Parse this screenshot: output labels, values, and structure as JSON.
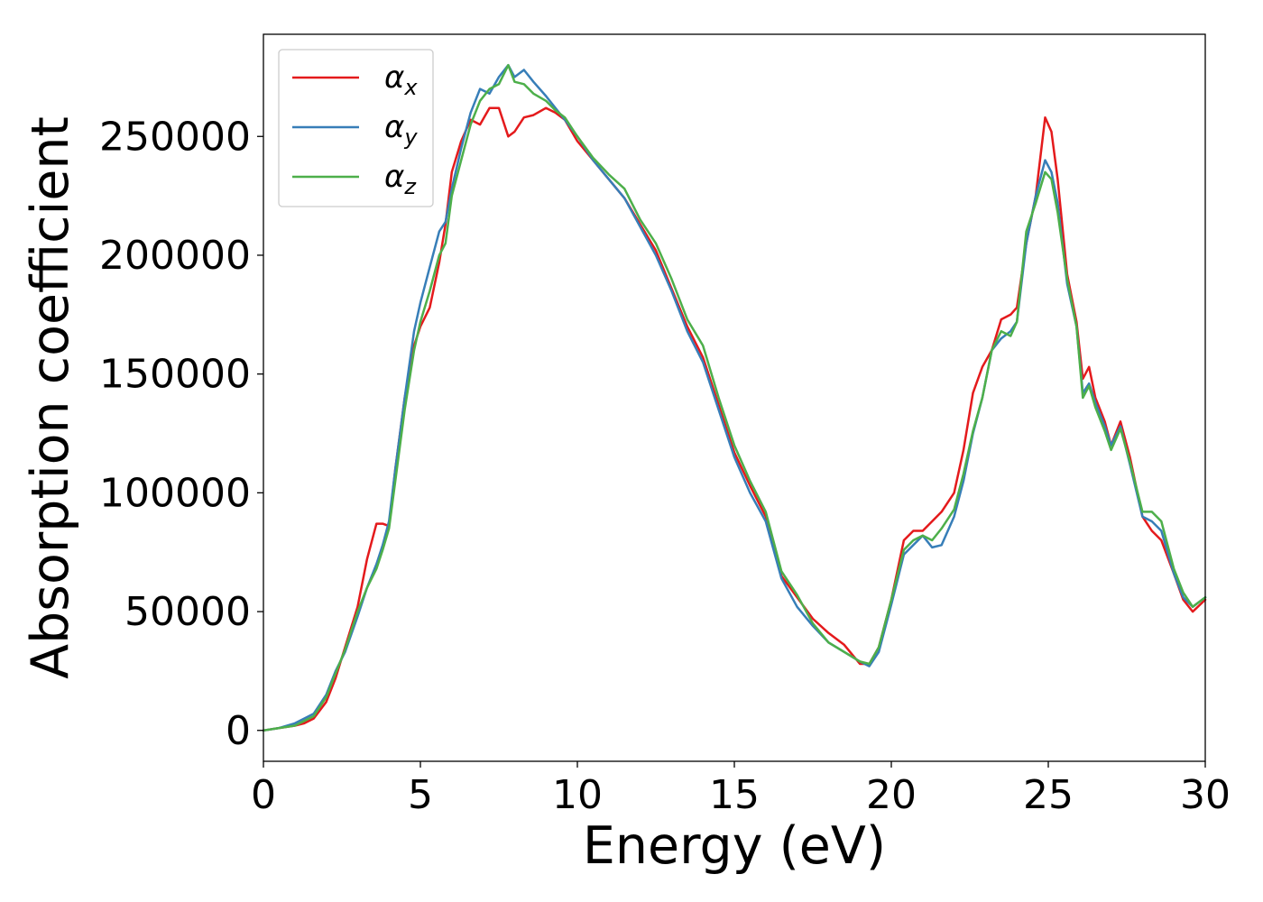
{
  "chart_data": {
    "type": "line",
    "title": "",
    "xlabel": "Energy (eV)",
    "ylabel": "Absorption coefficient",
    "xlim": [
      0,
      30
    ],
    "ylim": [
      -13000,
      293000
    ],
    "xticks": [
      0,
      5,
      10,
      15,
      20,
      25,
      30
    ],
    "xtick_labels": [
      "0",
      "5",
      "10",
      "15",
      "20",
      "25",
      "30"
    ],
    "yticks": [
      0,
      50000,
      100000,
      150000,
      200000,
      250000
    ],
    "ytick_labels": [
      "0",
      "50000",
      "100000",
      "150000",
      "200000",
      "250000"
    ],
    "grid": false,
    "legend_position": "upper-left",
    "series": [
      {
        "name": "αx",
        "symbol": "α",
        "subscript": "x",
        "color": "#e41a1c",
        "x": [
          0,
          0.5,
          1,
          1.3,
          1.6,
          2,
          2.3,
          2.6,
          3,
          3.3,
          3.6,
          3.8,
          4,
          4.2,
          4.5,
          4.8,
          5,
          5.3,
          5.6,
          5.8,
          6,
          6.3,
          6.6,
          6.9,
          7.2,
          7.5,
          7.8,
          8,
          8.3,
          8.6,
          9,
          9.3,
          9.6,
          10,
          10.5,
          11,
          11.5,
          12,
          12.5,
          13,
          13.5,
          14,
          14.5,
          15,
          15.5,
          16,
          16.5,
          17,
          17.5,
          18,
          18.5,
          19,
          19.3,
          19.6,
          20,
          20.4,
          20.7,
          21,
          21.3,
          21.6,
          22,
          22.3,
          22.6,
          22.9,
          23.2,
          23.5,
          23.8,
          24,
          24.3,
          24.6,
          24.9,
          25.1,
          25.3,
          25.6,
          25.9,
          26.1,
          26.3,
          26.5,
          26.8,
          27,
          27.3,
          27.6,
          28,
          28.3,
          28.6,
          29,
          29.3,
          29.6,
          30
        ],
        "y": [
          0,
          1000,
          2000,
          3000,
          5000,
          12000,
          22000,
          35000,
          52000,
          72000,
          87000,
          87000,
          86000,
          110000,
          140000,
          162000,
          170000,
          178000,
          197000,
          213000,
          235000,
          248000,
          257000,
          255000,
          262000,
          262000,
          250000,
          252000,
          258000,
          259000,
          262000,
          260000,
          257000,
          248000,
          240000,
          232000,
          224000,
          213000,
          202000,
          186000,
          170000,
          157000,
          137000,
          117000,
          103000,
          90000,
          65000,
          56000,
          47000,
          41000,
          36000,
          28000,
          28000,
          35000,
          55000,
          80000,
          84000,
          84000,
          88000,
          92000,
          100000,
          118000,
          142000,
          153000,
          160000,
          173000,
          175000,
          178000,
          205000,
          225000,
          258000,
          252000,
          232000,
          192000,
          172000,
          148000,
          153000,
          140000,
          130000,
          120000,
          130000,
          115000,
          90000,
          84000,
          80000,
          66000,
          55000,
          50000,
          55000
        ]
      },
      {
        "name": "αy",
        "symbol": "α",
        "subscript": "y",
        "color": "#377eb8",
        "x": [
          0,
          0.5,
          1,
          1.3,
          1.6,
          2,
          2.3,
          2.6,
          3,
          3.3,
          3.6,
          3.8,
          4,
          4.2,
          4.5,
          4.8,
          5,
          5.3,
          5.6,
          5.8,
          6,
          6.3,
          6.6,
          6.9,
          7.2,
          7.5,
          7.8,
          8,
          8.3,
          8.6,
          9,
          9.3,
          9.6,
          10,
          10.5,
          11,
          11.5,
          12,
          12.5,
          13,
          13.5,
          14,
          14.5,
          15,
          15.5,
          16,
          16.5,
          17,
          17.5,
          18,
          18.5,
          19,
          19.3,
          19.6,
          20,
          20.4,
          20.7,
          21,
          21.3,
          21.6,
          22,
          22.3,
          22.6,
          22.9,
          23.2,
          23.5,
          23.8,
          24,
          24.3,
          24.6,
          24.9,
          25.1,
          25.3,
          25.6,
          25.9,
          26.1,
          26.3,
          26.5,
          26.8,
          27,
          27.3,
          27.6,
          28,
          28.3,
          28.6,
          29,
          29.3,
          29.6,
          30
        ],
        "y": [
          0,
          1000,
          3000,
          5000,
          7000,
          15000,
          25000,
          33000,
          48000,
          60000,
          70000,
          78000,
          88000,
          110000,
          140000,
          168000,
          180000,
          195000,
          210000,
          214000,
          228000,
          245000,
          260000,
          270000,
          268000,
          275000,
          280000,
          275000,
          278000,
          273000,
          267000,
          262000,
          257000,
          250000,
          240000,
          232000,
          224000,
          212000,
          200000,
          185000,
          168000,
          155000,
          135000,
          115000,
          100000,
          88000,
          64000,
          52000,
          44000,
          37000,
          33000,
          29000,
          27000,
          33000,
          53000,
          74000,
          78000,
          82000,
          77000,
          78000,
          90000,
          105000,
          125000,
          140000,
          160000,
          165000,
          168000,
          172000,
          205000,
          225000,
          240000,
          235000,
          222000,
          188000,
          170000,
          142000,
          146000,
          138000,
          128000,
          120000,
          128000,
          112000,
          90000,
          88000,
          84000,
          66000,
          56000,
          52000,
          56000
        ]
      },
      {
        "name": "αz",
        "symbol": "α",
        "subscript": "z",
        "color": "#4daf4a",
        "x": [
          0,
          0.5,
          1,
          1.3,
          1.6,
          2,
          2.3,
          2.6,
          3,
          3.3,
          3.6,
          3.8,
          4,
          4.2,
          4.5,
          4.8,
          5,
          5.3,
          5.6,
          5.8,
          6,
          6.3,
          6.6,
          6.9,
          7.2,
          7.5,
          7.8,
          8,
          8.3,
          8.6,
          9,
          9.3,
          9.6,
          10,
          10.5,
          11,
          11.5,
          12,
          12.5,
          13,
          13.5,
          14,
          14.5,
          15,
          15.5,
          16,
          16.5,
          17,
          17.5,
          18,
          18.5,
          19,
          19.3,
          19.6,
          20,
          20.4,
          20.7,
          21,
          21.3,
          21.6,
          22,
          22.3,
          22.6,
          22.9,
          23.2,
          23.5,
          23.8,
          24,
          24.3,
          24.6,
          24.9,
          25.1,
          25.3,
          25.6,
          25.9,
          26.1,
          26.3,
          26.5,
          26.8,
          27,
          27.3,
          27.6,
          28,
          28.3,
          28.6,
          29,
          29.3,
          29.6,
          30
        ],
        "y": [
          0,
          1000,
          2000,
          4000,
          6000,
          14000,
          24000,
          34000,
          50000,
          60000,
          68000,
          76000,
          85000,
          105000,
          135000,
          160000,
          172000,
          185000,
          200000,
          205000,
          225000,
          240000,
          255000,
          265000,
          270000,
          272000,
          280000,
          273000,
          272000,
          268000,
          265000,
          261000,
          258000,
          250000,
          241000,
          234000,
          228000,
          215000,
          205000,
          190000,
          173000,
          162000,
          140000,
          120000,
          105000,
          92000,
          67000,
          57000,
          45000,
          37000,
          33000,
          29000,
          28000,
          35000,
          55000,
          76000,
          80000,
          82000,
          80000,
          85000,
          93000,
          108000,
          126000,
          140000,
          160000,
          168000,
          166000,
          172000,
          210000,
          222000,
          235000,
          232000,
          218000,
          190000,
          170000,
          140000,
          145000,
          136000,
          126000,
          118000,
          127000,
          113000,
          92000,
          92000,
          88000,
          68000,
          58000,
          52000,
          56000
        ]
      }
    ]
  }
}
